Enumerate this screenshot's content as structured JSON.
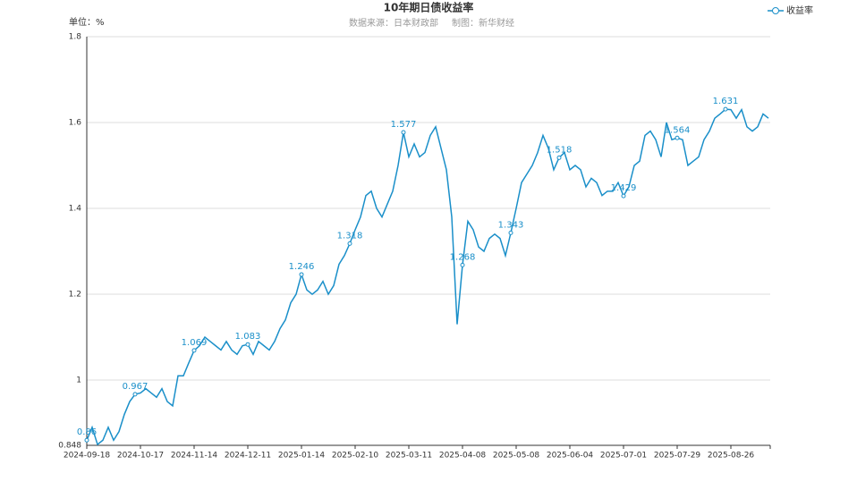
{
  "chart_data": {
    "type": "line",
    "title": "10年期日债收益率",
    "source": "数据来源：日本财政部",
    "credit": "制图：新华财经",
    "unit_label": "单位：%",
    "categories": [
      "2024-09-18",
      null,
      null,
      null,
      null,
      null,
      null,
      null,
      null,
      null,
      "2024-10-17",
      null,
      null,
      null,
      null,
      null,
      null,
      null,
      null,
      null,
      "2024-11-14",
      null,
      null,
      null,
      null,
      null,
      null,
      null,
      null,
      null,
      "2024-12-11",
      null,
      null,
      null,
      null,
      null,
      null,
      null,
      null,
      null,
      "2025-01-14",
      null,
      null,
      null,
      null,
      null,
      null,
      null,
      null,
      null,
      "2025-02-10",
      null,
      null,
      null,
      null,
      null,
      null,
      null,
      null,
      null,
      "2025-03-11",
      null,
      null,
      null,
      null,
      null,
      null,
      null,
      null,
      null,
      "2025-04-08",
      null,
      null,
      null,
      null,
      null,
      null,
      null,
      null,
      null,
      "2025-05-08",
      null,
      null,
      null,
      null,
      null,
      null,
      null,
      null,
      null,
      "2025-06-04",
      null,
      null,
      null,
      null,
      null,
      null,
      null,
      null,
      null,
      "2025-07-01",
      null,
      null,
      null,
      null,
      null,
      null,
      null,
      null,
      null,
      "2025-07-29",
      null,
      null,
      null,
      null,
      null,
      null,
      null,
      null,
      null,
      "2025-08-26",
      null,
      null,
      null,
      null,
      null,
      null,
      null
    ],
    "series": [
      {
        "name": "收益率",
        "color": "#1a8fc9",
        "values": [
          0.86,
          0.89,
          0.85,
          0.86,
          0.89,
          0.86,
          0.88,
          0.92,
          0.95,
          0.967,
          0.97,
          0.98,
          0.97,
          0.96,
          0.98,
          0.95,
          0.94,
          1.01,
          1.01,
          1.04,
          1.069,
          1.08,
          1.1,
          1.09,
          1.08,
          1.07,
          1.09,
          1.07,
          1.06,
          1.08,
          1.083,
          1.06,
          1.09,
          1.08,
          1.07,
          1.09,
          1.12,
          1.14,
          1.18,
          1.2,
          1.246,
          1.21,
          1.2,
          1.21,
          1.23,
          1.2,
          1.22,
          1.27,
          1.29,
          1.318,
          1.35,
          1.38,
          1.43,
          1.44,
          1.4,
          1.38,
          1.41,
          1.44,
          1.5,
          1.577,
          1.52,
          1.55,
          1.52,
          1.53,
          1.57,
          1.59,
          1.54,
          1.49,
          1.38,
          1.13,
          1.268,
          1.37,
          1.35,
          1.31,
          1.3,
          1.33,
          1.34,
          1.33,
          1.29,
          1.343,
          1.4,
          1.46,
          1.48,
          1.5,
          1.53,
          1.57,
          1.54,
          1.49,
          1.518,
          1.53,
          1.49,
          1.5,
          1.49,
          1.45,
          1.47,
          1.46,
          1.43,
          1.44,
          1.44,
          1.46,
          1.429,
          1.45,
          1.5,
          1.51,
          1.57,
          1.58,
          1.56,
          1.52,
          1.6,
          1.56,
          1.564,
          1.56,
          1.5,
          1.51,
          1.52,
          1.56,
          1.58,
          1.61,
          1.62,
          1.631,
          1.63,
          1.61,
          1.63,
          1.59,
          1.58,
          1.59,
          1.62,
          1.61
        ],
        "value_labels": [
          "0.86",
          null,
          null,
          null,
          null,
          null,
          null,
          null,
          null,
          "0.967",
          null,
          null,
          null,
          null,
          null,
          null,
          null,
          null,
          null,
          null,
          "1.069",
          null,
          null,
          null,
          null,
          null,
          null,
          null,
          null,
          null,
          "1.083",
          null,
          null,
          null,
          null,
          null,
          null,
          null,
          null,
          null,
          "1.246",
          null,
          null,
          null,
          null,
          null,
          null,
          null,
          null,
          "1.318",
          null,
          null,
          null,
          null,
          null,
          null,
          null,
          null,
          null,
          "1.577",
          null,
          null,
          null,
          null,
          null,
          null,
          null,
          null,
          null,
          null,
          "1.268",
          null,
          null,
          null,
          null,
          null,
          null,
          null,
          null,
          "1.343",
          null,
          null,
          null,
          null,
          null,
          null,
          null,
          null,
          "1.518",
          null,
          null,
          null,
          null,
          null,
          null,
          null,
          null,
          null,
          null,
          null,
          "1.429",
          null,
          null,
          null,
          null,
          null,
          null,
          null,
          null,
          null,
          "1.564",
          null,
          null,
          null,
          null,
          null,
          null,
          null,
          null,
          "1.631",
          null,
          null,
          null,
          null,
          null,
          null,
          null,
          null
        ]
      }
    ],
    "ylim": [
      0.848,
      1.8
    ],
    "yticks": [
      0.848,
      1,
      1.2,
      1.4,
      1.6,
      1.8
    ],
    "grid": true,
    "legend": "top-right"
  }
}
